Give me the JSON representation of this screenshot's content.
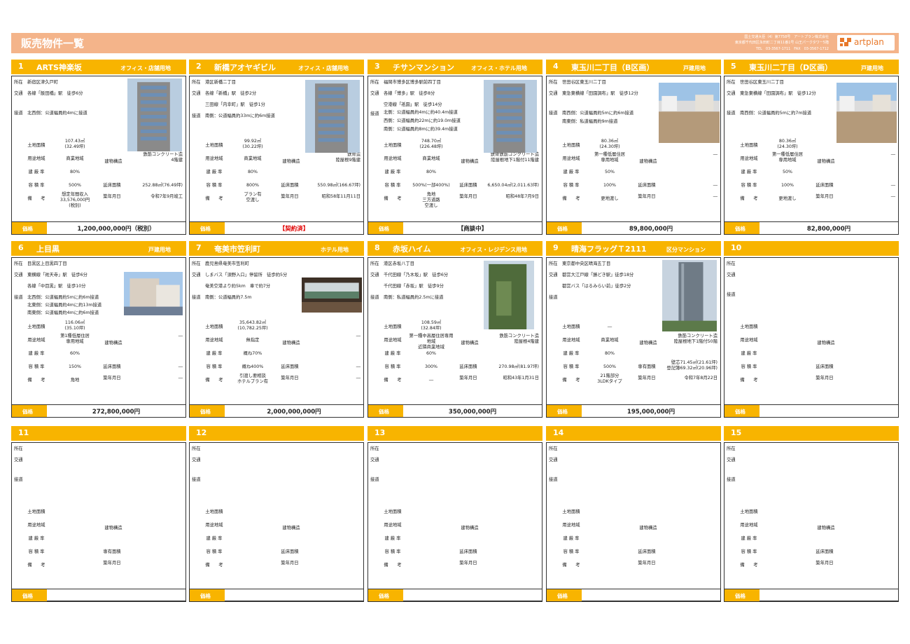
{
  "header": {
    "title": "販売物件一覧",
    "info": [
      "国土交通大臣（4）第7758号　アートプラン株式会社",
      "東京都千代田区永田町二丁目11番1号 山王パークタワー5階",
      "TEL　03-3567-1711　FAX　03-3567-1712"
    ],
    "logo_text": "artplan"
  },
  "price_label": "価格",
  "labels": {
    "address": "所在",
    "access": "交通",
    "road": "接道",
    "land_area": "土地面積",
    "zoning": "用途地域",
    "coverage": "建 蔽 率",
    "far": "容 積 率",
    "remarks": "備　　考",
    "structure": "建物構造",
    "floor_area": "延床面積",
    "floor_area_alt": "専有面積",
    "built": "築年月日"
  },
  "colors": {
    "accent": "#f8b400",
    "header": "#f4b48a",
    "logo": "#e8792b",
    "contract": "#e00000"
  },
  "properties": [
    {
      "no": "1",
      "name": "ARTS神楽坂",
      "type": "オフィス・店舗用地",
      "address": "新宿区津久戸町",
      "access": [
        "各線「飯田橋」駅　徒歩6分"
      ],
      "road": [
        "北西側：公道幅員約4mに接道"
      ],
      "land_area": "107.43㎡\n(32.49坪)",
      "zoning": "商業地域",
      "coverage": "80%",
      "far": "500%",
      "remarks": "想定年間収入\n33,576,000円\n(税別)",
      "structure": "鉄筋コンクリート造\n4階建",
      "floor_area": "252.88㎡(76.49坪)",
      "built": "令和7年9月竣工",
      "price": "1,200,000,000円（税別）",
      "photo": "building-photo"
    },
    {
      "no": "2",
      "name": "新橋アオヤギビル",
      "type": "オフィス・店舗用地",
      "address": "港区新橋二丁目",
      "access": [
        "各線「新橋」駅　徒歩2分",
        "三田線「内幸町」駅　徒歩1分"
      ],
      "road": [
        "南側：公道幅員約33mに約6m接道"
      ],
      "land_area": "99.92㎡\n(30.22坪)",
      "zoning": "商業地域",
      "coverage": "80%",
      "far": "800%",
      "remarks": "プラン有\n空渡し",
      "structure": "鉄骨造\n陸屋根9階建",
      "floor_area": "550.98㎡(166.67坪)",
      "built": "昭和58年11月11日",
      "price": "【契約済】",
      "photo": "building-photo"
    },
    {
      "no": "3",
      "name": "チサンマンション",
      "type": "オフィス・ホテル用地",
      "address": "福岡市博多区博多駅前四丁目",
      "access": [
        "各線「博多」駅　徒歩8分",
        "空港線「祇園」駅　徒歩14分"
      ],
      "road": [
        "北側：公道幅員約4mに約40.4m接道",
        "西側：公道幅員約22mに約19.0m接道",
        "南側：公道幅員約8mに約39.4m接道"
      ],
      "land_area": "748.70㎡\n(226.48坪)",
      "zoning": "商業地域",
      "coverage": "80%",
      "far": "500%(一部400%)",
      "remarks": "角地\n三方道路\n空渡し",
      "structure": "鉄骨鉄筋コンクリート造\n陸屋根地下1階付11階建",
      "floor_area": "6,650.04㎡(2,011.63坪)",
      "built": "昭和48年7月9日",
      "price": "【商談中】",
      "photo": "building-photo"
    },
    {
      "no": "4",
      "name": "東玉川二丁目（B区画）",
      "type": "戸建用地",
      "address": "世田谷区東玉川二丁目",
      "access": [
        "東急東横線「田園調布」駅　徒歩12分"
      ],
      "road": [
        "南西側：公道幅員約5mに約6m接道",
        "南東側：私道幅員約9m接道"
      ],
      "land_area": "80.36㎡\n(24.30坪)",
      "zoning": "第一種低層住居\n専用地域",
      "coverage": "50%",
      "far": "100%",
      "remarks": "更地渡し",
      "structure": "―",
      "floor_area": "―",
      "built": "―",
      "price": "89,800,000円",
      "photo": "land-photo"
    },
    {
      "no": "5",
      "name": "東玉川二丁目（D区画）",
      "type": "戸建用地",
      "address": "世田谷区東玉川二丁目",
      "access": [
        "東急東横線「田園調布」駅　徒歩12分"
      ],
      "road": [
        "南西側：公道幅員約5mに約7m接道"
      ],
      "land_area": "80.36㎡\n(24.30坪)",
      "zoning": "第一種低層住居\n専用地域",
      "coverage": "50%",
      "far": "100%",
      "remarks": "更地渡し",
      "structure": "―",
      "floor_area": "―",
      "built": "―",
      "price": "82,800,000円",
      "photo": "land-photo"
    },
    {
      "no": "6",
      "name": "上目黒",
      "type": "戸建用地",
      "address": "目黒区上目黒四丁目",
      "access": [
        "東横線「祐天寺」駅　徒歩6分",
        "各線「中目黒」駅　徒歩10分"
      ],
      "road": [
        "北西側：公道幅員約5mに約6m接道",
        "北東側：公道幅員約4mに約13m接道",
        "南東側：公道幅員約4mに約6m接道"
      ],
      "land_area": "116.06㎡\n(35.10坪)",
      "zoning": "第1種低層住居\n専用地域",
      "coverage": "60%",
      "far": "150%",
      "remarks": "角地",
      "structure": "―",
      "floor_area": "―",
      "built": "―",
      "price": "272,800,000円",
      "photo": "house-photo"
    },
    {
      "no": "7",
      "name": "奄美市笠利町",
      "type": "ホテル用地",
      "address": "鹿児島県奄美市笠利町",
      "access": [
        "しまバス「須野入口」停留所　徒歩約5分",
        "奄美空港より約5km　車で約7分"
      ],
      "road": [
        "南側：公道幅員約7.5m"
      ],
      "land_area": "35,643.82㎡\n(10,782.25坪)",
      "zoning": "無指定",
      "coverage": "概ね70%",
      "far": "概ね400%",
      "remarks": "引渡し要相談\nホテルプラン有",
      "structure": "―",
      "floor_area": "―",
      "built": "―",
      "price": "2,000,000,000円",
      "photo": "resort-photo"
    },
    {
      "no": "8",
      "name": "赤坂ハイム",
      "type": "オフィス・レジデンス用地",
      "address": "港区赤坂八丁目",
      "access": [
        "千代田線「乃木坂」駅　徒歩6分",
        "千代田線「赤坂」駅　徒歩9分"
      ],
      "road": [
        "南側：私道幅員約2.5mに接道"
      ],
      "land_area": "108.59㎡\n(32.84坪)",
      "zoning": "第一種中高層住居専用地域\n近隣商業地域",
      "coverage": "60%",
      "far": "300%",
      "remarks": "―",
      "structure": "鉄筋コンクリート造\n陸屋根4階建",
      "floor_area": "270.98㎡(81.97坪)",
      "built": "昭和43年1月31日",
      "price": "350,000,000円",
      "photo": "green-building-photo"
    },
    {
      "no": "9",
      "name": "晴海フラッグＴ2111",
      "type": "区分マンション",
      "address": "東京都中央区晴海五丁目",
      "access": [
        "都営大江戸線「勝どき駅」徒歩18分",
        "都営バス「はるみらい前」徒歩2分"
      ],
      "road": [],
      "land_area": "―",
      "zoning": "商業地域",
      "coverage": "80%",
      "far": "500%",
      "remarks": "21階部分\n3LDKタイプ",
      "structure": "鉄筋コンクリート造\n陸屋根地下1階付50階",
      "floor_area": "壁芯71.45㎡(21.61坪)\n登記簿69.32㎡(20.96坪)",
      "built": "令和7年8月22日",
      "price": "195,000,000円",
      "photo": "tower-photo"
    },
    {
      "no": "10"
    },
    {
      "no": "11"
    },
    {
      "no": "12"
    },
    {
      "no": "13"
    },
    {
      "no": "14"
    },
    {
      "no": "15"
    }
  ]
}
